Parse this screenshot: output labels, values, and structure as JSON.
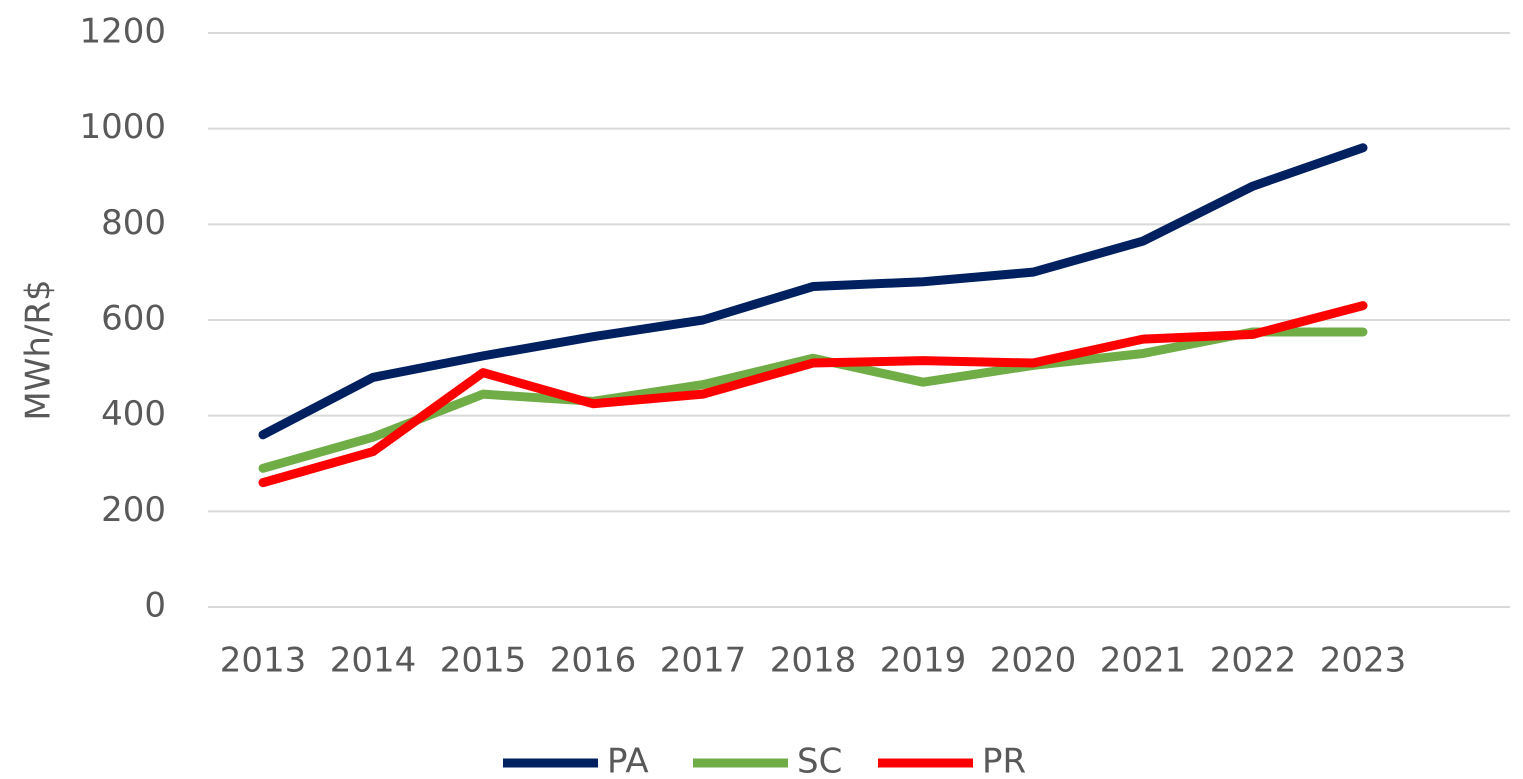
{
  "chart_data": {
    "type": "line",
    "y_label": "MWh/R$",
    "categories": [
      "2013",
      "2014",
      "2015",
      "2016",
      "2017",
      "2018",
      "2019",
      "2020",
      "2021",
      "2022",
      "2023"
    ],
    "series": [
      {
        "name": "PA",
        "color": "#002060",
        "values": [
          360,
          480,
          525,
          565,
          600,
          670,
          680,
          700,
          765,
          880,
          960
        ]
      },
      {
        "name": "SC",
        "color": "#70ad47",
        "values": [
          290,
          355,
          445,
          430,
          465,
          520,
          470,
          505,
          530,
          575,
          575
        ]
      },
      {
        "name": "PR",
        "color": "#ff0000",
        "values": [
          260,
          325,
          490,
          425,
          445,
          510,
          515,
          510,
          560,
          570,
          630
        ]
      }
    ],
    "ylim": [
      0,
      1200
    ],
    "yticks": [
      0,
      200,
      400,
      600,
      800,
      1000,
      1200
    ],
    "grid": true,
    "legend": "bottom"
  }
}
